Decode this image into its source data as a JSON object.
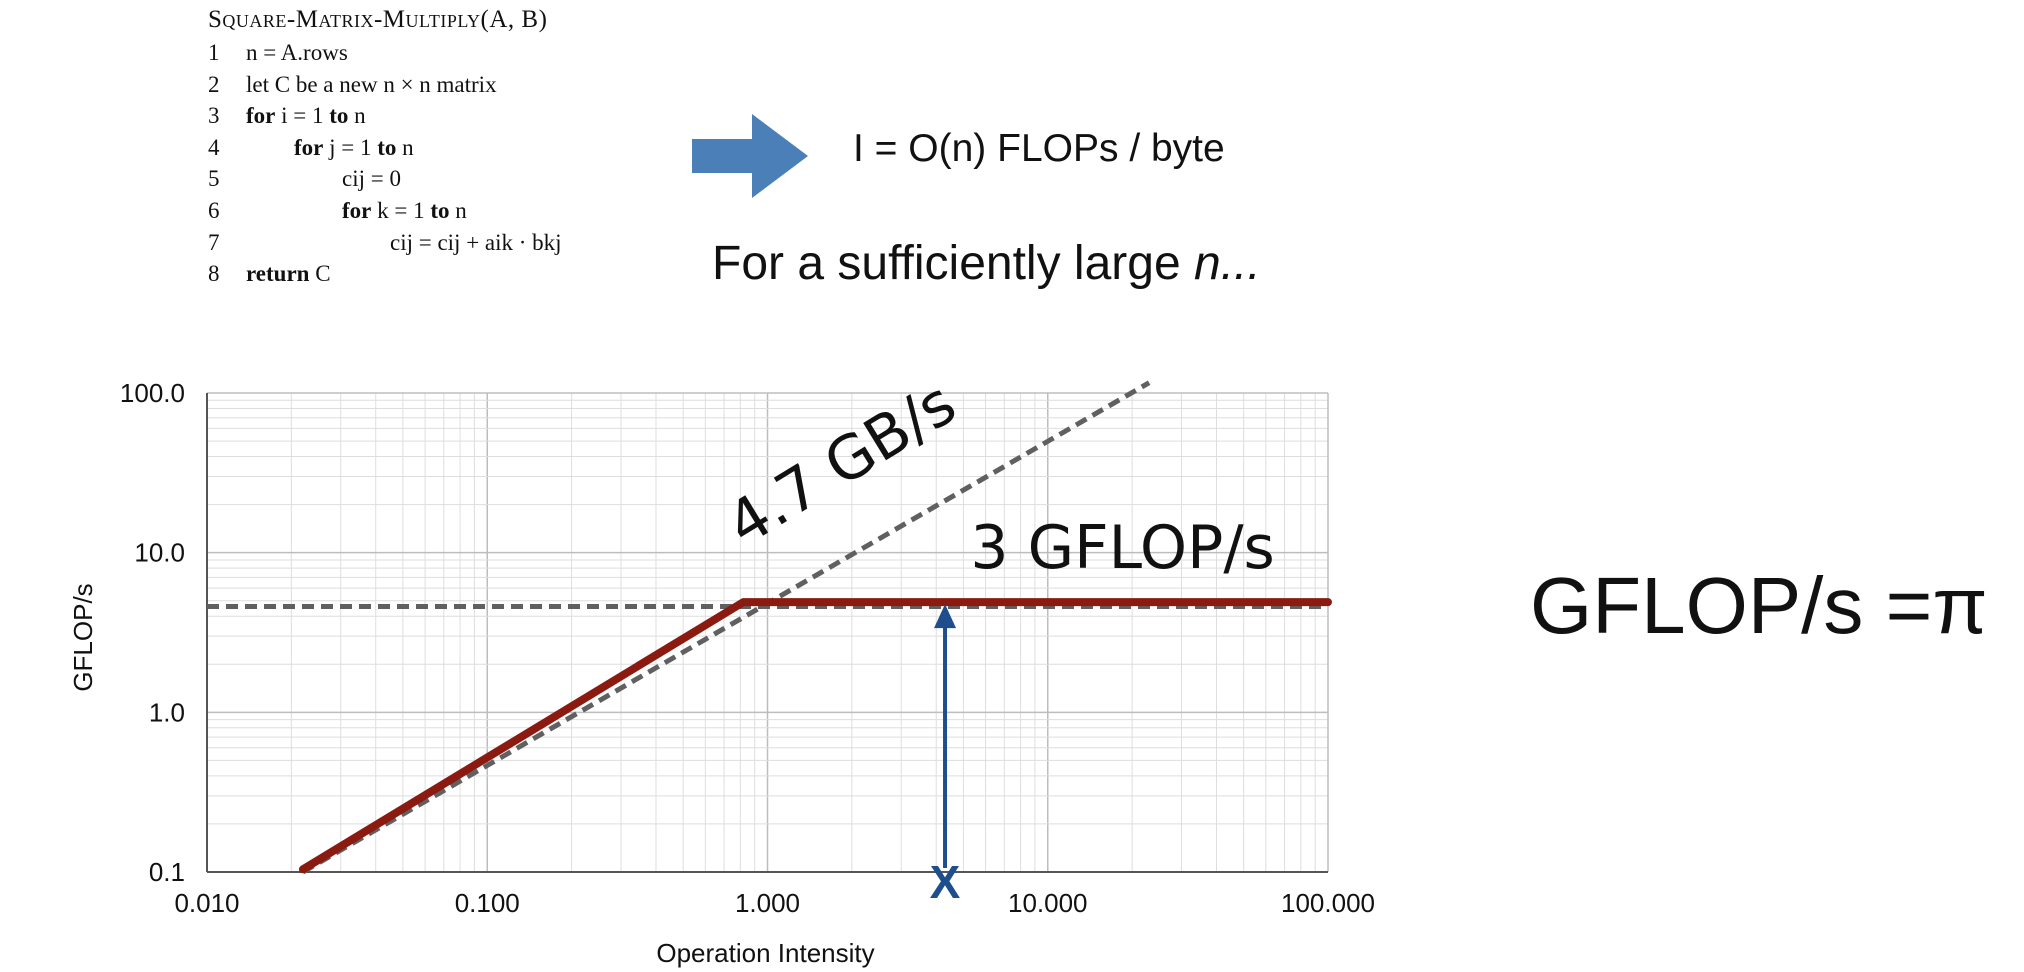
{
  "algorithm": {
    "title": "Square-Matrix-Multiply(A, B)",
    "lines": [
      {
        "num": "1",
        "indent": 0,
        "parts": [
          {
            "t": "n = A.rows",
            "k": false
          }
        ]
      },
      {
        "num": "2",
        "indent": 0,
        "parts": [
          {
            "t": "let C be a new n × n matrix",
            "k": false
          }
        ]
      },
      {
        "num": "3",
        "indent": 0,
        "parts": [
          {
            "t": "for",
            "k": true
          },
          {
            "t": " i = 1 ",
            "k": false
          },
          {
            "t": "to",
            "k": true
          },
          {
            "t": " n",
            "k": false
          }
        ]
      },
      {
        "num": "4",
        "indent": 1,
        "parts": [
          {
            "t": "for",
            "k": true
          },
          {
            "t": " j = 1 ",
            "k": false
          },
          {
            "t": "to",
            "k": true
          },
          {
            "t": " n",
            "k": false
          }
        ]
      },
      {
        "num": "5",
        "indent": 2,
        "parts": [
          {
            "t": "cij = 0",
            "k": false
          }
        ]
      },
      {
        "num": "6",
        "indent": 2,
        "parts": [
          {
            "t": "for",
            "k": true
          },
          {
            "t": " k = 1 ",
            "k": false
          },
          {
            "t": "to",
            "k": true
          },
          {
            "t": " n",
            "k": false
          }
        ]
      },
      {
        "num": "7",
        "indent": 3,
        "parts": [
          {
            "t": "cij = cij + aik · bkj",
            "k": false
          }
        ]
      },
      {
        "num": "8",
        "indent": 0,
        "parts": [
          {
            "t": "return",
            "k": true
          },
          {
            "t": " C",
            "k": false
          }
        ]
      }
    ]
  },
  "arrow_color": "#4a7fb7",
  "formula": "I = O(n) FLOPs / byte",
  "note": {
    "text": "For a sufficiently large ",
    "emph": "n..."
  },
  "pi_equation": "GFLOP/s =π",
  "chart_data": {
    "type": "line",
    "scale": "log-log",
    "xlabel": "Operation Intensity",
    "ylabel": "GFLOP/s",
    "xlim": [
      0.01,
      100
    ],
    "ylim": [
      0.1,
      100
    ],
    "xticks": [
      {
        "v": 0.01,
        "label": "0.010"
      },
      {
        "v": 0.1,
        "label": "0.100"
      },
      {
        "v": 1,
        "label": "1.000"
      },
      {
        "v": 10,
        "label": "10.000"
      },
      {
        "v": 100,
        "label": "100.000"
      }
    ],
    "yticks": [
      {
        "v": 0.1,
        "label": "0.1"
      },
      {
        "v": 1,
        "label": "1.0"
      },
      {
        "v": 10,
        "label": "10.0"
      },
      {
        "v": 100,
        "label": "100.0"
      }
    ],
    "grid": true,
    "series": [
      {
        "name": "roof",
        "style": "solid",
        "color": "#8b1a10",
        "points": [
          [
            0.022,
            0.104
          ],
          [
            0.82,
            4.9
          ],
          [
            100,
            4.9
          ]
        ]
      },
      {
        "name": "bandwidth-ceiling",
        "style": "dashed",
        "color": "#606060",
        "points": [
          [
            0.022,
            0.1
          ],
          [
            23,
            116
          ]
        ]
      },
      {
        "name": "compute-ceiling",
        "style": "dashed",
        "color": "#606060",
        "points": [
          [
            0.01,
            4.6
          ],
          [
            100,
            4.6
          ]
        ]
      }
    ],
    "annotations": [
      {
        "text": "4.7 GB/s",
        "x": 2.0,
        "y": 28,
        "rotate": -31.5
      },
      {
        "text": "3 GFLOP/s",
        "x": 18.5,
        "y": 8.0,
        "rotate": 0
      }
    ],
    "marker": {
      "x": 4.3,
      "y_from": 0.1,
      "y_to": 4.9,
      "color": "#1f4e8c",
      "symbol": "X"
    }
  }
}
